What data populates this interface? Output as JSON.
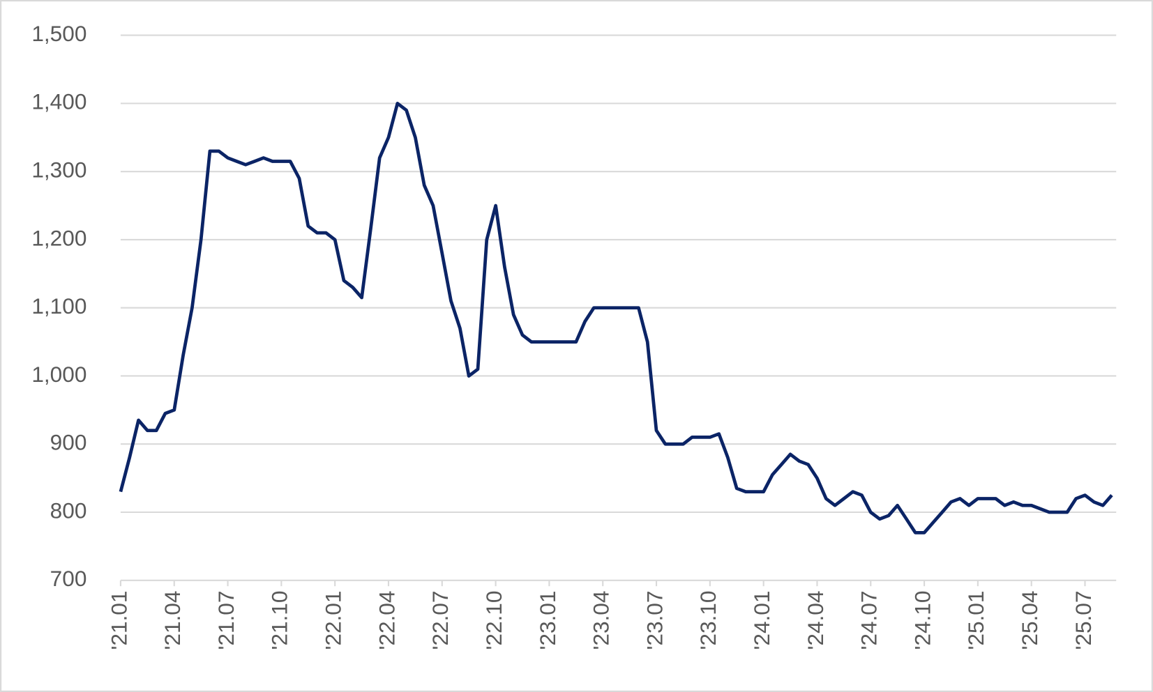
{
  "chart_data": {
    "type": "line",
    "categories": [
      "'21.01",
      null,
      null,
      null,
      null,
      null,
      "'21.04",
      null,
      null,
      null,
      null,
      null,
      "'21.07",
      null,
      null,
      null,
      null,
      null,
      "'21.10",
      null,
      null,
      null,
      null,
      null,
      "'22.01",
      null,
      null,
      null,
      null,
      null,
      "'22.04",
      null,
      null,
      null,
      null,
      null,
      "'22.07",
      null,
      null,
      null,
      null,
      null,
      "'22.10",
      null,
      null,
      null,
      null,
      null,
      "'23.01",
      null,
      null,
      null,
      null,
      null,
      "'23.04",
      null,
      null,
      null,
      null,
      null,
      "'23.07",
      null,
      null,
      null,
      null,
      null,
      "'23.10",
      null,
      null,
      null,
      null,
      null,
      "'24.01",
      null,
      null,
      null,
      null,
      null,
      "'24.04",
      null,
      null,
      null,
      null,
      null,
      "'24.07",
      null,
      null,
      null,
      null,
      null,
      "'24.10",
      null,
      null,
      null,
      null,
      null,
      "'25.01",
      null,
      null,
      null,
      null,
      null,
      "'25.04",
      null,
      null,
      null,
      null,
      null,
      "'25.07",
      null,
      null,
      null
    ],
    "values": [
      830,
      880,
      935,
      920,
      920,
      945,
      950,
      1030,
      1100,
      1200,
      1330,
      1330,
      1320,
      1315,
      1310,
      1315,
      1320,
      1315,
      1315,
      1315,
      1290,
      1220,
      1210,
      1210,
      1200,
      1140,
      1130,
      1115,
      1215,
      1320,
      1350,
      1400,
      1390,
      1350,
      1280,
      1250,
      1180,
      1110,
      1070,
      1000,
      1010,
      1200,
      1250,
      1160,
      1090,
      1060,
      1050,
      1050,
      1050,
      1050,
      1050,
      1050,
      1080,
      1100,
      1100,
      1100,
      1100,
      1100,
      1100,
      1050,
      920,
      900,
      900,
      900,
      910,
      910,
      910,
      915,
      880,
      835,
      830,
      830,
      830,
      855,
      870,
      885,
      875,
      870,
      850,
      820,
      810,
      820,
      830,
      825,
      800,
      790,
      795,
      810,
      790,
      770,
      770,
      785,
      800,
      815,
      820,
      810,
      820,
      820,
      820,
      810,
      815,
      810,
      810,
      805,
      800,
      800,
      800,
      820,
      825,
      815,
      810,
      825
    ],
    "color": "#0b2466",
    "ylim": [
      700,
      1500
    ],
    "yticks": [
      700,
      800,
      900,
      {
        "value": 1000,
        "label": "1,000"
      },
      {
        "value": 1100,
        "label": "1,100"
      },
      {
        "value": 1200,
        "label": "1,200"
      },
      {
        "value": 1300,
        "label": "1,300"
      },
      {
        "value": 1400,
        "label": "1,400"
      },
      {
        "value": 1500,
        "label": "1,500"
      }
    ],
    "grid": true
  }
}
